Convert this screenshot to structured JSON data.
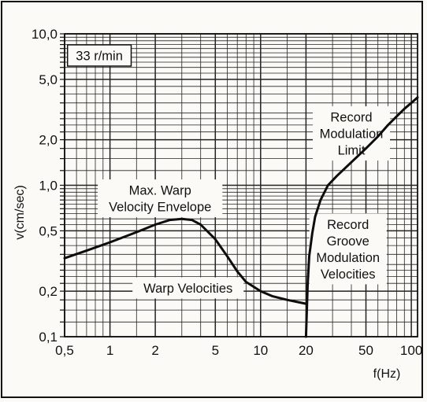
{
  "chart_data": {
    "type": "line",
    "x_scale": "log",
    "y_scale": "log",
    "xlim": [
      0.5,
      110
    ],
    "ylim": [
      0.1,
      10
    ],
    "grid": true,
    "xlabel": "f(Hz)",
    "ylabel": "v(cm/sec)",
    "x_ticks": [
      {
        "value": 0.5,
        "label": "0,5"
      },
      {
        "value": 1,
        "label": "1"
      },
      {
        "value": 2,
        "label": "2"
      },
      {
        "value": 5,
        "label": "5"
      },
      {
        "value": 10,
        "label": "10"
      },
      {
        "value": 20,
        "label": "20"
      },
      {
        "value": 50,
        "label": "50"
      },
      {
        "value": 100,
        "label": "100"
      }
    ],
    "y_ticks": [
      {
        "value": 0.1,
        "label": "0,1"
      },
      {
        "value": 0.2,
        "label": "0,2"
      },
      {
        "value": 0.5,
        "label": "0,5"
      },
      {
        "value": 1,
        "label": "1,0"
      },
      {
        "value": 2,
        "label": "2,0"
      },
      {
        "value": 5,
        "label": "5,0"
      },
      {
        "value": 10,
        "label": "10,0"
      }
    ],
    "annotations": [
      {
        "id": "speed",
        "lines": [
          "33 r/min"
        ],
        "x": 0.85,
        "y": 7.2,
        "boxed": true
      },
      {
        "id": "warp-envelope",
        "lines": [
          "Max. Warp",
          "Velocity Envelope"
        ],
        "x": 2.15,
        "y": 0.82,
        "boxed": false
      },
      {
        "id": "warp-velocities",
        "lines": [
          "Warp Velocities"
        ],
        "x": 3.3,
        "y": 0.21,
        "boxed": false
      },
      {
        "id": "modulation-limit",
        "lines": [
          "Record",
          "Modulation",
          "Limit"
        ],
        "x": 40,
        "y": 2.2,
        "boxed": false
      },
      {
        "id": "groove-velocities",
        "lines": [
          "Record",
          "Groove",
          "Modulation",
          "Velocities"
        ],
        "x": 38,
        "y": 0.38,
        "boxed": false
      }
    ],
    "series": [
      {
        "id": "warp-envelope-curve",
        "x": [
          0.5,
          0.7,
          1,
          1.5,
          2,
          2.5,
          3,
          3.5,
          4,
          5,
          6,
          7,
          8,
          10,
          12,
          15,
          20
        ],
        "y": [
          0.33,
          0.37,
          0.42,
          0.49,
          0.55,
          0.59,
          0.6,
          0.59,
          0.55,
          0.44,
          0.34,
          0.27,
          0.23,
          0.2,
          0.185,
          0.175,
          0.165
        ]
      },
      {
        "id": "modulation-limit-curve",
        "x": [
          20,
          20.5,
          21,
          22,
          23,
          25,
          28,
          32,
          40,
          50,
          60,
          70,
          80,
          90,
          100,
          110
        ],
        "y": [
          0.1,
          0.22,
          0.34,
          0.48,
          0.62,
          0.8,
          1.0,
          1.15,
          1.42,
          1.75,
          2.1,
          2.5,
          2.85,
          3.2,
          3.5,
          3.8
        ]
      }
    ]
  }
}
